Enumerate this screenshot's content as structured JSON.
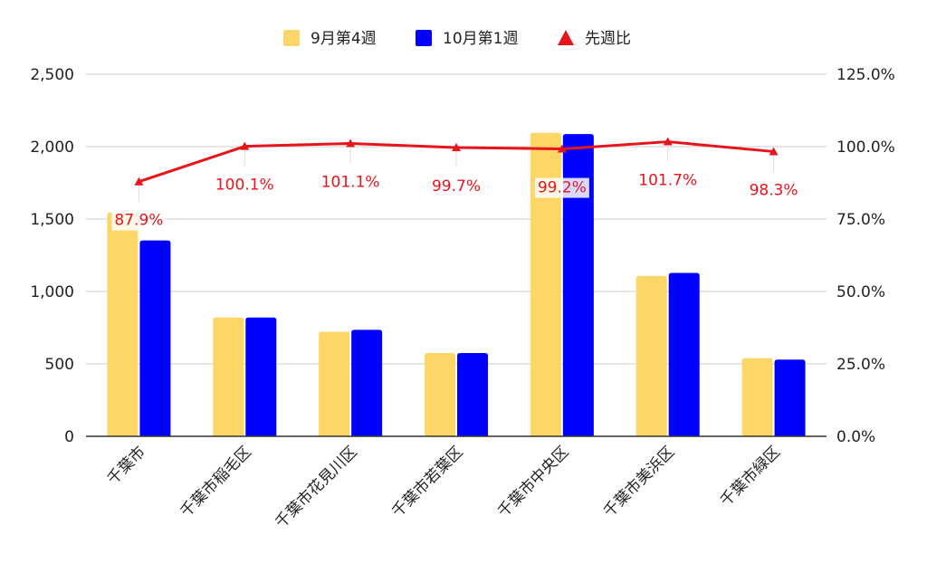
{
  "chart_data": {
    "type": "bar",
    "categories": [
      "千葉市",
      "千葉市稲毛区",
      "千葉市花見川区",
      "千葉市若葉区",
      "千葉市中央区",
      "千葉市美浜区",
      "千葉市緑区"
    ],
    "series": [
      {
        "name": "9月第4週",
        "type": "bar",
        "axis": "left",
        "color": "#fdd668",
        "values": [
          1545,
          820,
          722,
          575,
          2095,
          1108,
          540
        ]
      },
      {
        "name": "10月第1週",
        "type": "bar",
        "axis": "left",
        "color": "#0000ff",
        "values": [
          1352,
          820,
          735,
          575,
          2087,
          1128,
          530
        ]
      },
      {
        "name": "先週比",
        "type": "line",
        "axis": "right",
        "color": "#e8141b",
        "marker": "triangle",
        "values": [
          87.9,
          100.1,
          101.1,
          99.7,
          99.2,
          101.7,
          98.3
        ],
        "labels": [
          "87.9%",
          "100.1%",
          "101.1%",
          "99.7%",
          "99.2%",
          "101.7%",
          "98.3%"
        ]
      }
    ],
    "y_left": {
      "range": [
        0,
        2500
      ],
      "ticks": [
        0,
        500,
        1000,
        1500,
        2000,
        2500
      ],
      "tick_labels": [
        "0",
        "500",
        "1,000",
        "1,500",
        "2,000",
        "2,500"
      ]
    },
    "y_right": {
      "range": [
        0,
        125
      ],
      "ticks": [
        0,
        25,
        50,
        75,
        100,
        125
      ],
      "tick_labels": [
        "0.0%",
        "25.0%",
        "50.0%",
        "75.0%",
        "100.0%",
        "125.0%"
      ]
    },
    "grid": true,
    "legend": "top-center"
  }
}
